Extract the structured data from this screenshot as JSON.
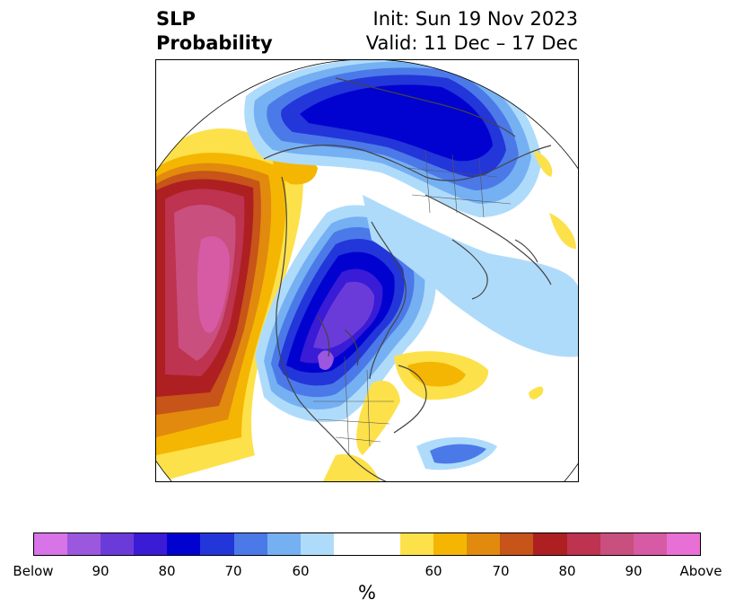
{
  "title": {
    "variable_line1": "SLP",
    "variable_line2": "Probability",
    "init": "Init: Sun 19 Nov 2023",
    "valid": "Valid: 11 Dec – 17 Dec"
  },
  "colorbar": {
    "unit": "%",
    "colors": [
      "#d873e8",
      "#9b57dd",
      "#6b3bd9",
      "#3a1bd6",
      "#0202d0",
      "#2336d9",
      "#4c79e8",
      "#75b0f3",
      "#afdbfb",
      "#ffffff",
      "#ffffff",
      "#fde14a",
      "#f4b602",
      "#e18a0e",
      "#c75418",
      "#ae1f22",
      "#bd3350",
      "#c94f7f",
      "#d75aa4",
      "#e86fd5"
    ],
    "ticks": [
      {
        "label": "Below"
      },
      {
        "label": "90"
      },
      {
        "label": "80"
      },
      {
        "label": "70"
      },
      {
        "label": "60"
      },
      {
        "label": "60"
      },
      {
        "label": "70"
      },
      {
        "label": "80"
      },
      {
        "label": "90"
      },
      {
        "label": "Above"
      }
    ]
  },
  "map": {
    "projection": "north-polar-stereographic",
    "background": "#ffffff",
    "coastline_color": "#444444"
  }
}
